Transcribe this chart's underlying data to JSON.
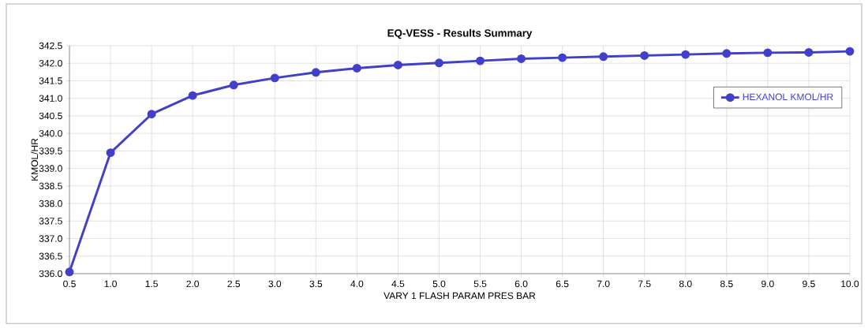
{
  "chart_data": {
    "type": "line",
    "title": "EQ-VESS - Results Summary",
    "xlabel": "VARY 1 FLASH PARAM PRES BAR",
    "ylabel": "KMOL/HR",
    "x": [
      0.5,
      1.0,
      1.5,
      2.0,
      2.5,
      3.0,
      3.5,
      4.0,
      4.5,
      5.0,
      5.5,
      6.0,
      6.5,
      7.0,
      7.5,
      8.0,
      8.5,
      9.0,
      9.5,
      10.0
    ],
    "series": [
      {
        "name": "HEXANOL KMOL/HR",
        "color": "#4040c8",
        "values": [
          336.05,
          339.45,
          340.55,
          341.08,
          341.38,
          341.58,
          341.74,
          341.86,
          341.95,
          342.01,
          342.07,
          342.13,
          342.16,
          342.19,
          342.22,
          342.25,
          342.28,
          342.3,
          342.31,
          342.34
        ]
      }
    ],
    "xlim": [
      0.5,
      10.0
    ],
    "xticks": [
      {
        "value": 0.5,
        "label": "0.5"
      },
      {
        "value": 1,
        "label": "1.0"
      },
      {
        "value": 1.5,
        "label": "1.5"
      },
      {
        "value": 2,
        "label": "2.0"
      },
      {
        "value": 2.5,
        "label": "2.5"
      },
      {
        "value": 3,
        "label": "3.0"
      },
      {
        "value": 3.5,
        "label": "3.5"
      },
      {
        "value": 4,
        "label": "4.0"
      },
      {
        "value": 4.5,
        "label": "4.5"
      },
      {
        "value": 5,
        "label": "5.0"
      },
      {
        "value": 5.5,
        "label": "5.5"
      },
      {
        "value": 6,
        "label": "6.0"
      },
      {
        "value": 6.5,
        "label": "6.5"
      },
      {
        "value": 7,
        "label": "7.0"
      },
      {
        "value": 7.5,
        "label": "7.5"
      },
      {
        "value": 8,
        "label": "8.0"
      },
      {
        "value": 8.5,
        "label": "8.5"
      },
      {
        "value": 9,
        "label": "9.0"
      },
      {
        "value": 9.5,
        "label": "9.5"
      },
      {
        "value": 10,
        "label": "10.0"
      }
    ],
    "ylim": [
      336.0,
      342.5
    ],
    "yticks": [
      {
        "value": 336,
        "label": "336.0"
      },
      {
        "value": 336.5,
        "label": "336.5"
      },
      {
        "value": 337,
        "label": "337.0"
      },
      {
        "value": 337.5,
        "label": "337.5"
      },
      {
        "value": 338,
        "label": "338.0"
      },
      {
        "value": 338.5,
        "label": "338.5"
      },
      {
        "value": 339,
        "label": "339.0"
      },
      {
        "value": 339.5,
        "label": "339.5"
      },
      {
        "value": 340,
        "label": "340.0"
      },
      {
        "value": 340.5,
        "label": "340.5"
      },
      {
        "value": 341,
        "label": "341.0"
      },
      {
        "value": 341.5,
        "label": "341.5"
      },
      {
        "value": 342,
        "label": "342.0"
      },
      {
        "value": 342.5,
        "label": "342.5"
      }
    ],
    "grid": true,
    "legend": "top right",
    "marker": "circle",
    "line_style": "solid"
  }
}
